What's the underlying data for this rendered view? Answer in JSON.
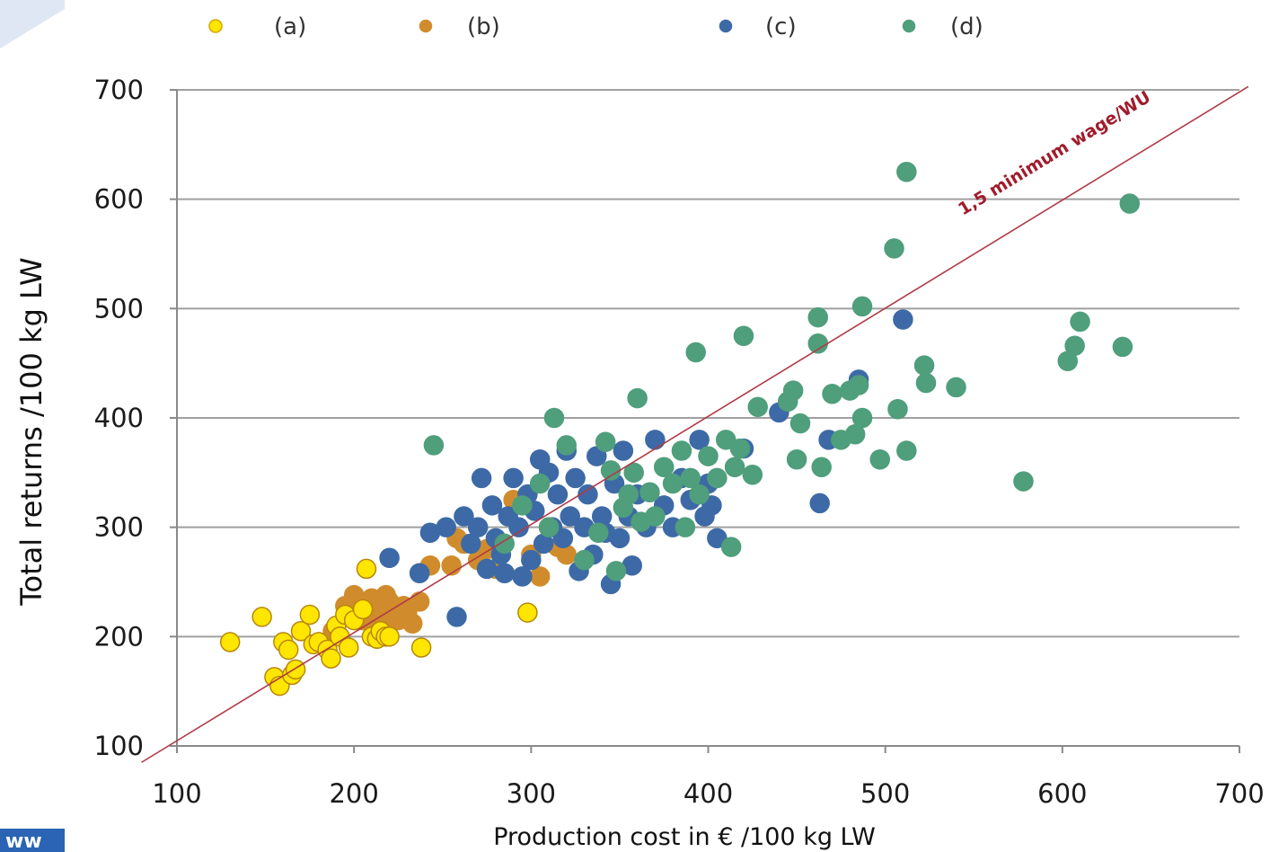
{
  "badge_text": "ww",
  "chart_data": {
    "type": "scatter",
    "title": "",
    "xlabel": "Production cost in € /100 kg LW",
    "ylabel": "Total returns /100 kg LW",
    "xlim": [
      100,
      700
    ],
    "ylim": [
      100,
      700
    ],
    "xticks": [
      100,
      200,
      300,
      400,
      500,
      600,
      700
    ],
    "yticks": [
      100,
      200,
      300,
      400,
      500,
      600,
      700
    ],
    "grid": "horizontal",
    "legend_position": "top",
    "annotation": "1,5 minimum wage/WU",
    "reference_line": {
      "points": [
        [
          80,
          85
        ],
        [
          705,
          703
        ]
      ],
      "color": "#b03a48"
    },
    "series": [
      {
        "name": "(a)",
        "color": "#ffe600",
        "edge": "#b8860b",
        "points": [
          [
            130,
            195
          ],
          [
            148,
            218
          ],
          [
            155,
            163
          ],
          [
            158,
            155
          ],
          [
            160,
            195
          ],
          [
            163,
            188
          ],
          [
            165,
            165
          ],
          [
            167,
            170
          ],
          [
            170,
            205
          ],
          [
            175,
            220
          ],
          [
            177,
            193
          ],
          [
            180,
            195
          ],
          [
            185,
            188
          ],
          [
            187,
            180
          ],
          [
            190,
            210
          ],
          [
            192,
            200
          ],
          [
            195,
            220
          ],
          [
            197,
            190
          ],
          [
            200,
            215
          ],
          [
            205,
            225
          ],
          [
            207,
            262
          ],
          [
            210,
            200
          ],
          [
            213,
            198
          ],
          [
            215,
            205
          ],
          [
            218,
            200
          ],
          [
            220,
            200
          ],
          [
            238,
            190
          ],
          [
            298,
            222
          ]
        ]
      },
      {
        "name": "(b)",
        "color": "#d08c2c",
        "edge": "#d08c2c",
        "points": [
          [
            188,
            205
          ],
          [
            195,
            228
          ],
          [
            200,
            238
          ],
          [
            203,
            230
          ],
          [
            205,
            215
          ],
          [
            208,
            222
          ],
          [
            210,
            235
          ],
          [
            213,
            225
          ],
          [
            215,
            212
          ],
          [
            218,
            238
          ],
          [
            220,
            232
          ],
          [
            223,
            218
          ],
          [
            225,
            215
          ],
          [
            228,
            228
          ],
          [
            230,
            222
          ],
          [
            233,
            212
          ],
          [
            237,
            232
          ],
          [
            243,
            265
          ],
          [
            255,
            265
          ],
          [
            258,
            290
          ],
          [
            262,
            285
          ],
          [
            270,
            270
          ],
          [
            275,
            280
          ],
          [
            280,
            262
          ],
          [
            290,
            325
          ],
          [
            300,
            275
          ],
          [
            305,
            255
          ],
          [
            310,
            300
          ],
          [
            315,
            282
          ],
          [
            320,
            275
          ]
        ]
      },
      {
        "name": "(c)",
        "color": "#3d6aa6",
        "edge": "#3d6aa6",
        "points": [
          [
            220,
            272
          ],
          [
            237,
            258
          ],
          [
            243,
            295
          ],
          [
            252,
            300
          ],
          [
            258,
            218
          ],
          [
            262,
            310
          ],
          [
            266,
            285
          ],
          [
            270,
            300
          ],
          [
            272,
            345
          ],
          [
            275,
            262
          ],
          [
            278,
            320
          ],
          [
            280,
            290
          ],
          [
            283,
            275
          ],
          [
            285,
            258
          ],
          [
            287,
            310
          ],
          [
            290,
            345
          ],
          [
            293,
            300
          ],
          [
            295,
            255
          ],
          [
            298,
            330
          ],
          [
            300,
            270
          ],
          [
            302,
            315
          ],
          [
            305,
            362
          ],
          [
            307,
            285
          ],
          [
            310,
            350
          ],
          [
            312,
            300
          ],
          [
            315,
            330
          ],
          [
            318,
            290
          ],
          [
            320,
            370
          ],
          [
            322,
            310
          ],
          [
            325,
            345
          ],
          [
            327,
            260
          ],
          [
            330,
            300
          ],
          [
            332,
            330
          ],
          [
            335,
            275
          ],
          [
            337,
            365
          ],
          [
            340,
            310
          ],
          [
            342,
            295
          ],
          [
            345,
            248
          ],
          [
            347,
            340
          ],
          [
            350,
            290
          ],
          [
            352,
            370
          ],
          [
            355,
            310
          ],
          [
            357,
            265
          ],
          [
            360,
            330
          ],
          [
            365,
            300
          ],
          [
            370,
            380
          ],
          [
            375,
            320
          ],
          [
            380,
            300
          ],
          [
            385,
            345
          ],
          [
            390,
            325
          ],
          [
            395,
            380
          ],
          [
            398,
            310
          ],
          [
            400,
            340
          ],
          [
            402,
            320
          ],
          [
            405,
            290
          ],
          [
            420,
            372
          ],
          [
            440,
            405
          ],
          [
            463,
            322
          ],
          [
            468,
            380
          ],
          [
            485,
            435
          ],
          [
            510,
            490
          ]
        ]
      },
      {
        "name": "(d)",
        "color": "#4f9e7c",
        "edge": "#4f9e7c",
        "points": [
          [
            245,
            375
          ],
          [
            285,
            285
          ],
          [
            295,
            320
          ],
          [
            305,
            340
          ],
          [
            310,
            300
          ],
          [
            313,
            400
          ],
          [
            320,
            375
          ],
          [
            330,
            270
          ],
          [
            338,
            295
          ],
          [
            342,
            378
          ],
          [
            345,
            352
          ],
          [
            348,
            260
          ],
          [
            352,
            318
          ],
          [
            355,
            330
          ],
          [
            358,
            350
          ],
          [
            360,
            418
          ],
          [
            362,
            305
          ],
          [
            367,
            332
          ],
          [
            370,
            310
          ],
          [
            375,
            355
          ],
          [
            380,
            340
          ],
          [
            385,
            370
          ],
          [
            387,
            300
          ],
          [
            390,
            345
          ],
          [
            393,
            460
          ],
          [
            395,
            330
          ],
          [
            400,
            365
          ],
          [
            405,
            345
          ],
          [
            410,
            380
          ],
          [
            413,
            282
          ],
          [
            415,
            355
          ],
          [
            418,
            372
          ],
          [
            420,
            475
          ],
          [
            425,
            348
          ],
          [
            428,
            410
          ],
          [
            445,
            415
          ],
          [
            448,
            425
          ],
          [
            450,
            362
          ],
          [
            452,
            395
          ],
          [
            462,
            492
          ],
          [
            462,
            468
          ],
          [
            464,
            355
          ],
          [
            470,
            422
          ],
          [
            475,
            380
          ],
          [
            480,
            425
          ],
          [
            483,
            385
          ],
          [
            485,
            430
          ],
          [
            487,
            400
          ],
          [
            487,
            502
          ],
          [
            497,
            362
          ],
          [
            505,
            555
          ],
          [
            507,
            408
          ],
          [
            512,
            625
          ],
          [
            512,
            370
          ],
          [
            522,
            448
          ],
          [
            523,
            432
          ],
          [
            540,
            428
          ],
          [
            578,
            342
          ],
          [
            603,
            452
          ],
          [
            607,
            466
          ],
          [
            610,
            488
          ],
          [
            634,
            465
          ],
          [
            638,
            596
          ]
        ]
      }
    ]
  }
}
